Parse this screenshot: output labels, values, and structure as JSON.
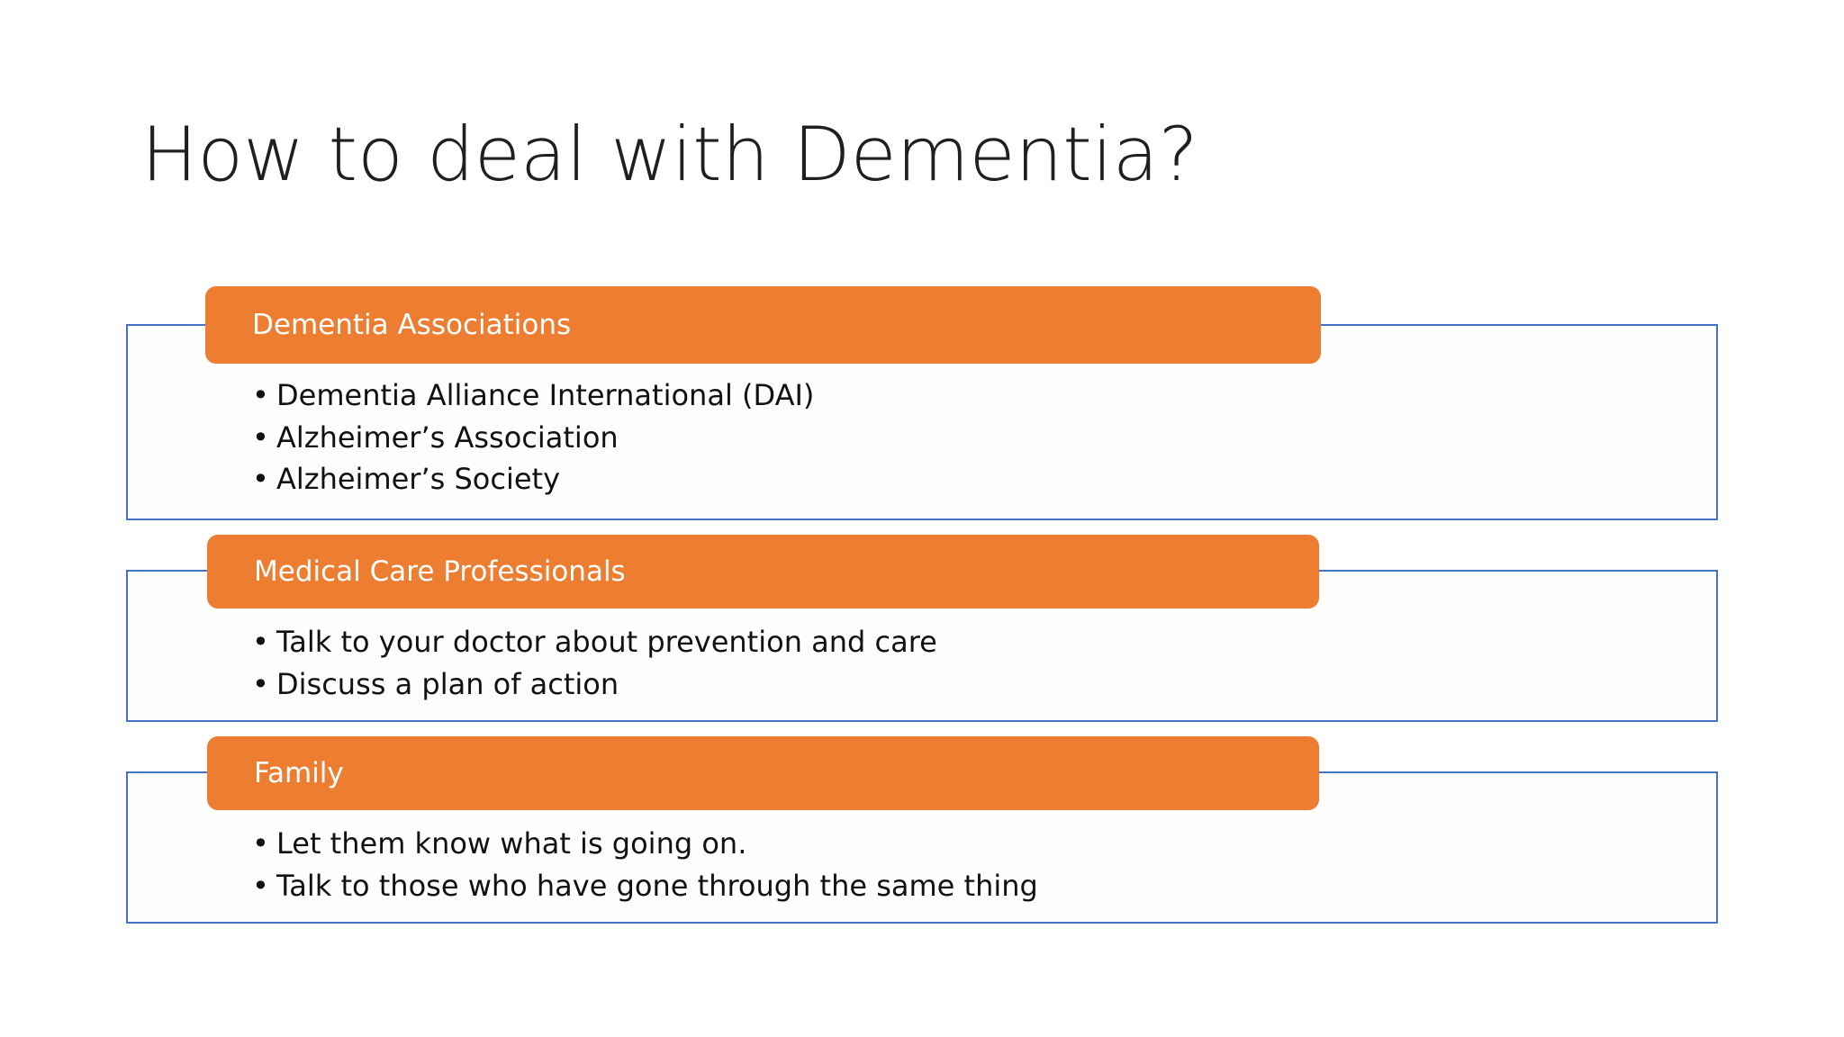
{
  "slide": {
    "title": "How to deal with Dementia?"
  },
  "groups": [
    {
      "header": "Dementia Associations",
      "items": [
        "Dementia Alliance International (DAI)",
        "Alzheimer’s  Association",
        "Alzheimer’s Society"
      ]
    },
    {
      "header": "Medical Care Professionals",
      "items": [
        "Talk to your doctor about prevention and care",
        "Discuss a plan of action"
      ]
    },
    {
      "header": "Family",
      "items": [
        "Let them know what is going on.",
        "Talk to those who have gone through the same thing"
      ]
    }
  ],
  "colors": {
    "header_fill": "#ed7d31",
    "box_border": "#4472c4",
    "header_text": "#ffffff",
    "body_text": "#111111"
  }
}
